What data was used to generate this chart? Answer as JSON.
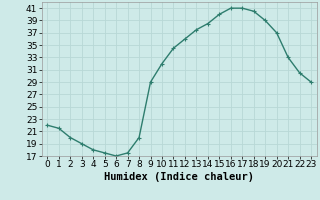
{
  "x": [
    0,
    1,
    2,
    3,
    4,
    5,
    6,
    7,
    8,
    9,
    10,
    11,
    12,
    13,
    14,
    15,
    16,
    17,
    18,
    19,
    20,
    21,
    22,
    23
  ],
  "y": [
    22,
    21.5,
    20,
    19,
    18,
    17.5,
    17,
    17.5,
    20,
    29,
    32,
    34.5,
    36,
    37.5,
    38.5,
    40,
    41,
    41,
    40.5,
    39,
    37,
    33,
    30.5,
    29
  ],
  "line_color": "#2e7d6e",
  "marker": "+",
  "marker_size": 3,
  "bg_color": "#ceeae8",
  "grid_color": "#b8d8d6",
  "xlabel": "Humidex (Indice chaleur)",
  "ylim": [
    17,
    42
  ],
  "xlim": [
    -0.5,
    23.5
  ],
  "yticks": [
    17,
    19,
    21,
    23,
    25,
    27,
    29,
    31,
    33,
    35,
    37,
    39,
    41
  ],
  "xticks": [
    0,
    1,
    2,
    3,
    4,
    5,
    6,
    7,
    8,
    9,
    10,
    11,
    12,
    13,
    14,
    15,
    16,
    17,
    18,
    19,
    20,
    21,
    22,
    23
  ],
  "xlabel_fontsize": 7.5,
  "tick_fontsize": 6.5,
  "line_width": 1.0
}
